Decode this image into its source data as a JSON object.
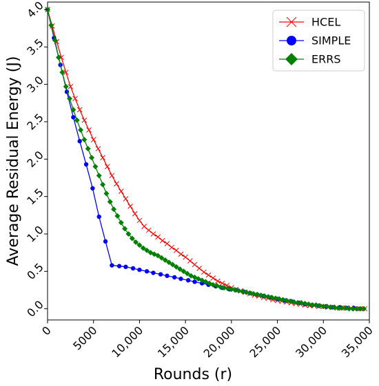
{
  "chart_data": {
    "type": "line",
    "title": "",
    "xlabel": "Rounds (r)",
    "ylabel": "Average Residual Energy (J)",
    "xlim": [
      0,
      35000
    ],
    "ylim": [
      -0.15,
      4.1
    ],
    "x_ticks": [
      0,
      5000,
      10000,
      15000,
      20000,
      25000,
      30000,
      35000
    ],
    "x_tick_labels": [
      "0",
      "5000",
      "10,000",
      "15,000",
      "20,000",
      "25,000",
      "30,000",
      "35,000"
    ],
    "y_ticks": [
      0.0,
      0.5,
      1.0,
      1.5,
      2.0,
      2.5,
      3.0,
      3.5,
      4.0
    ],
    "y_tick_labels": [
      "0.0",
      "0.5",
      "1.0",
      "1.5",
      "2.0",
      "2.5",
      "3.0",
      "3.5",
      "4.0"
    ],
    "grid": false,
    "legend_position": "top-right",
    "series": [
      {
        "name": "HCEL",
        "color": "#ff0000",
        "marker": "x",
        "x": [
          0,
          500,
          1000,
          1500,
          2000,
          2500,
          3000,
          3500,
          4000,
          4500,
          5000,
          5500,
          6000,
          6500,
          7000,
          7500,
          8000,
          8500,
          9000,
          9500,
          10000,
          10500,
          11000,
          11500,
          12000,
          12500,
          13000,
          13500,
          14000,
          14500,
          15000,
          15500,
          16000,
          16500,
          17000,
          17500,
          18000,
          18500,
          19000,
          19500,
          20000,
          20500,
          21000,
          21500,
          22000,
          22500,
          23000,
          23500,
          24000,
          24500,
          25000,
          25500,
          26000,
          26500,
          27000,
          27500,
          28000,
          28500,
          29000,
          29500,
          30000,
          30500,
          31000,
          31500,
          32000,
          32500,
          33000,
          33500,
          34000,
          34500
        ],
        "y": [
          4.0,
          3.78,
          3.57,
          3.36,
          3.16,
          2.97,
          2.81,
          2.66,
          2.52,
          2.39,
          2.26,
          2.14,
          2.02,
          1.9,
          1.78,
          1.67,
          1.57,
          1.47,
          1.37,
          1.27,
          1.18,
          1.1,
          1.05,
          1.0,
          0.96,
          0.91,
          0.87,
          0.82,
          0.78,
          0.73,
          0.69,
          0.64,
          0.59,
          0.54,
          0.49,
          0.45,
          0.41,
          0.37,
          0.34,
          0.31,
          0.28,
          0.26,
          0.24,
          0.22,
          0.2,
          0.18,
          0.17,
          0.15,
          0.14,
          0.12,
          0.11,
          0.1,
          0.09,
          0.08,
          0.07,
          0.06,
          0.05,
          0.04,
          0.04,
          0.03,
          0.03,
          0.02,
          0.02,
          0.01,
          0.01,
          0.01,
          0.01,
          0.0,
          0.0,
          0.0
        ]
      },
      {
        "name": "SIMPLE",
        "color": "#0000ff",
        "marker": "circle",
        "x": [
          0,
          700,
          1400,
          2100,
          2800,
          3500,
          4200,
          4900,
          5600,
          6300,
          7000,
          7800,
          8500,
          9300,
          10000,
          10800,
          11500,
          12300,
          13000,
          13800,
          14500,
          15300,
          16000,
          16800,
          17500,
          18300,
          19000,
          19800,
          20500,
          21300,
          22000,
          22800,
          23500,
          24300,
          25000,
          25800,
          26500,
          27300,
          28000,
          28800,
          29500,
          30300,
          31000,
          31800,
          32500,
          33300,
          34000
        ],
        "y": [
          4.0,
          3.62,
          3.26,
          2.9,
          2.56,
          2.24,
          1.93,
          1.61,
          1.23,
          0.9,
          0.58,
          0.57,
          0.56,
          0.54,
          0.52,
          0.5,
          0.48,
          0.46,
          0.44,
          0.42,
          0.4,
          0.38,
          0.36,
          0.34,
          0.32,
          0.3,
          0.28,
          0.26,
          0.25,
          0.23,
          0.21,
          0.19,
          0.17,
          0.15,
          0.13,
          0.11,
          0.1,
          0.08,
          0.06,
          0.05,
          0.04,
          0.03,
          0.02,
          0.02,
          0.01,
          0.01,
          0.0
        ]
      },
      {
        "name": "ERRS",
        "color": "#008000",
        "marker": "diamond",
        "x": [
          0,
          400,
          800,
          1200,
          1600,
          2000,
          2400,
          2800,
          3200,
          3600,
          4000,
          4400,
          4800,
          5200,
          5600,
          6000,
          6400,
          6800,
          7200,
          7600,
          8000,
          8400,
          8800,
          9200,
          9600,
          10000,
          10400,
          10800,
          11200,
          11600,
          12000,
          12400,
          12800,
          13200,
          13600,
          14000,
          14400,
          14800,
          15200,
          15600,
          16000,
          16400,
          16800,
          17200,
          17600,
          18000,
          18400,
          18800,
          19200,
          19600,
          20000,
          20400,
          20800,
          21200,
          21600,
          22000,
          22400,
          22800,
          23200,
          23600,
          24000,
          24400,
          24800,
          25200,
          25600,
          26000,
          26400,
          26800,
          27200,
          27600,
          28000,
          28400,
          28800,
          29200,
          29600,
          30000,
          30400,
          30800,
          31200,
          31600,
          32000,
          32400,
          32800,
          33200,
          33600,
          34000,
          34400
        ],
        "y": [
          4.0,
          3.79,
          3.59,
          3.36,
          3.16,
          2.97,
          2.81,
          2.66,
          2.52,
          2.39,
          2.26,
          2.14,
          2.02,
          1.9,
          1.78,
          1.66,
          1.54,
          1.43,
          1.33,
          1.24,
          1.15,
          1.07,
          1.0,
          0.94,
          0.89,
          0.85,
          0.81,
          0.78,
          0.75,
          0.73,
          0.71,
          0.68,
          0.65,
          0.62,
          0.59,
          0.56,
          0.53,
          0.5,
          0.47,
          0.44,
          0.42,
          0.4,
          0.38,
          0.36,
          0.34,
          0.32,
          0.31,
          0.29,
          0.28,
          0.27,
          0.26,
          0.25,
          0.24,
          0.23,
          0.22,
          0.21,
          0.2,
          0.19,
          0.18,
          0.17,
          0.16,
          0.15,
          0.14,
          0.13,
          0.12,
          0.11,
          0.1,
          0.09,
          0.08,
          0.08,
          0.07,
          0.06,
          0.05,
          0.05,
          0.04,
          0.03,
          0.03,
          0.02,
          0.02,
          0.01,
          0.01,
          0.01,
          0.0,
          0.0,
          0.0,
          0.0,
          0.0
        ]
      }
    ]
  }
}
